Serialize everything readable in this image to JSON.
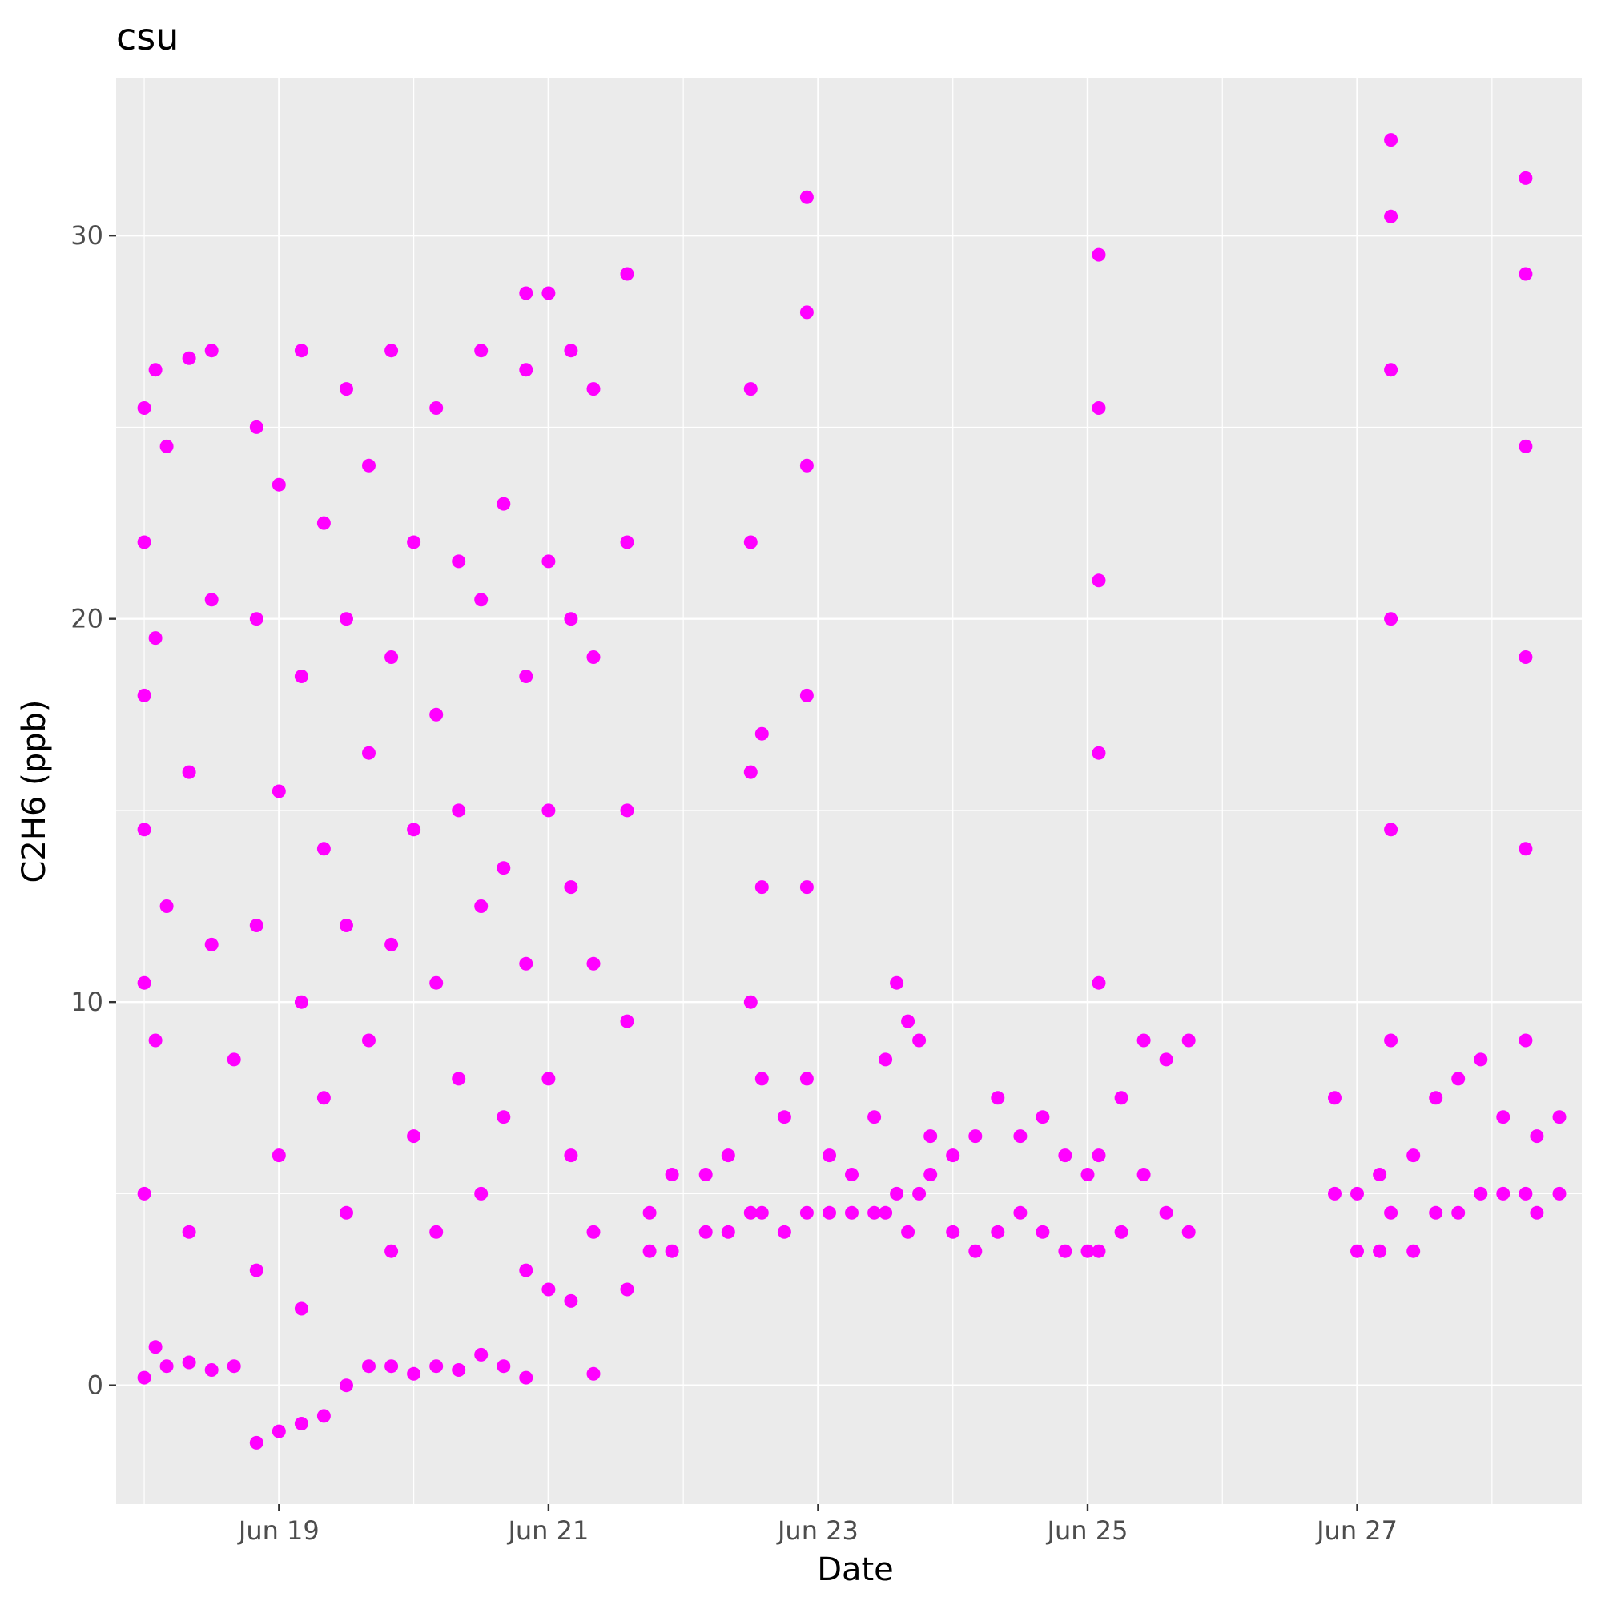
{
  "chart_data": {
    "type": "scatter",
    "title": "csu",
    "xlabel": "Date",
    "ylabel": "C2H6 (ppb)",
    "x_type": "date",
    "xlim": [
      "2023-06-17T19:00",
      "2023-06-28T16:00"
    ],
    "ylim": [
      -3.1,
      34.1
    ],
    "x_ticks": [
      {
        "value": "2023-06-19",
        "label": "Jun 19"
      },
      {
        "value": "2023-06-21",
        "label": "Jun 21"
      },
      {
        "value": "2023-06-23",
        "label": "Jun 23"
      },
      {
        "value": "2023-06-25",
        "label": "Jun 25"
      },
      {
        "value": "2023-06-27",
        "label": "Jun 27"
      }
    ],
    "y_ticks": [
      0,
      10,
      20,
      30
    ],
    "grid": true,
    "legend": "none",
    "point_color": "#ff00ff",
    "panel_color": "#ebebeb",
    "series": [
      {
        "values": [
          {
            "x": "2023-06-18T00:00",
            "y": 0.2
          },
          {
            "x": "2023-06-18T00:00",
            "y": 5.0
          },
          {
            "x": "2023-06-18T00:00",
            "y": 10.5
          },
          {
            "x": "2023-06-18T00:00",
            "y": 14.5
          },
          {
            "x": "2023-06-18T00:00",
            "y": 18.0
          },
          {
            "x": "2023-06-18T00:00",
            "y": 22.0
          },
          {
            "x": "2023-06-18T00:00",
            "y": 25.5
          },
          {
            "x": "2023-06-18T02:00",
            "y": 1.0
          },
          {
            "x": "2023-06-18T02:00",
            "y": 9.0
          },
          {
            "x": "2023-06-18T02:00",
            "y": 19.5
          },
          {
            "x": "2023-06-18T02:00",
            "y": 26.5
          },
          {
            "x": "2023-06-18T04:00",
            "y": 0.5
          },
          {
            "x": "2023-06-18T04:00",
            "y": 12.5
          },
          {
            "x": "2023-06-18T04:00",
            "y": 24.5
          },
          {
            "x": "2023-06-18T08:00",
            "y": 0.6
          },
          {
            "x": "2023-06-18T08:00",
            "y": 4.0
          },
          {
            "x": "2023-06-18T08:00",
            "y": 16.0
          },
          {
            "x": "2023-06-18T08:00",
            "y": 26.8
          },
          {
            "x": "2023-06-18T12:00",
            "y": 0.4
          },
          {
            "x": "2023-06-18T12:00",
            "y": 11.5
          },
          {
            "x": "2023-06-18T12:00",
            "y": 20.5
          },
          {
            "x": "2023-06-18T12:00",
            "y": 27.0
          },
          {
            "x": "2023-06-18T16:00",
            "y": 0.5
          },
          {
            "x": "2023-06-18T16:00",
            "y": 8.5
          },
          {
            "x": "2023-06-18T20:00",
            "y": -1.5
          },
          {
            "x": "2023-06-18T20:00",
            "y": 3.0
          },
          {
            "x": "2023-06-18T20:00",
            "y": 12.0
          },
          {
            "x": "2023-06-18T20:00",
            "y": 20.0
          },
          {
            "x": "2023-06-18T20:00",
            "y": 25.0
          },
          {
            "x": "2023-06-19T00:00",
            "y": -1.2
          },
          {
            "x": "2023-06-19T00:00",
            "y": 6.0
          },
          {
            "x": "2023-06-19T00:00",
            "y": 15.5
          },
          {
            "x": "2023-06-19T00:00",
            "y": 23.5
          },
          {
            "x": "2023-06-19T04:00",
            "y": -1.0
          },
          {
            "x": "2023-06-19T04:00",
            "y": 2.0
          },
          {
            "x": "2023-06-19T04:00",
            "y": 10.0
          },
          {
            "x": "2023-06-19T04:00",
            "y": 18.5
          },
          {
            "x": "2023-06-19T04:00",
            "y": 27.0
          },
          {
            "x": "2023-06-19T08:00",
            "y": -0.8
          },
          {
            "x": "2023-06-19T08:00",
            "y": 7.5
          },
          {
            "x": "2023-06-19T08:00",
            "y": 14.0
          },
          {
            "x": "2023-06-19T08:00",
            "y": 22.5
          },
          {
            "x": "2023-06-19T12:00",
            "y": 0.0
          },
          {
            "x": "2023-06-19T12:00",
            "y": 4.5
          },
          {
            "x": "2023-06-19T12:00",
            "y": 12.0
          },
          {
            "x": "2023-06-19T12:00",
            "y": 20.0
          },
          {
            "x": "2023-06-19T12:00",
            "y": 26.0
          },
          {
            "x": "2023-06-19T16:00",
            "y": 0.5
          },
          {
            "x": "2023-06-19T16:00",
            "y": 9.0
          },
          {
            "x": "2023-06-19T16:00",
            "y": 16.5
          },
          {
            "x": "2023-06-19T16:00",
            "y": 24.0
          },
          {
            "x": "2023-06-19T20:00",
            "y": 0.5
          },
          {
            "x": "2023-06-19T20:00",
            "y": 3.5
          },
          {
            "x": "2023-06-19T20:00",
            "y": 11.5
          },
          {
            "x": "2023-06-19T20:00",
            "y": 19.0
          },
          {
            "x": "2023-06-19T20:00",
            "y": 27.0
          },
          {
            "x": "2023-06-20T00:00",
            "y": 0.3
          },
          {
            "x": "2023-06-20T00:00",
            "y": 6.5
          },
          {
            "x": "2023-06-20T00:00",
            "y": 14.5
          },
          {
            "x": "2023-06-20T00:00",
            "y": 22.0
          },
          {
            "x": "2023-06-20T04:00",
            "y": 0.5
          },
          {
            "x": "2023-06-20T04:00",
            "y": 4.0
          },
          {
            "x": "2023-06-20T04:00",
            "y": 10.5
          },
          {
            "x": "2023-06-20T04:00",
            "y": 17.5
          },
          {
            "x": "2023-06-20T04:00",
            "y": 25.5
          },
          {
            "x": "2023-06-20T08:00",
            "y": 0.4
          },
          {
            "x": "2023-06-20T08:00",
            "y": 8.0
          },
          {
            "x": "2023-06-20T08:00",
            "y": 15.0
          },
          {
            "x": "2023-06-20T08:00",
            "y": 21.5
          },
          {
            "x": "2023-06-20T12:00",
            "y": 0.8
          },
          {
            "x": "2023-06-20T12:00",
            "y": 5.0
          },
          {
            "x": "2023-06-20T12:00",
            "y": 12.5
          },
          {
            "x": "2023-06-20T12:00",
            "y": 20.5
          },
          {
            "x": "2023-06-20T12:00",
            "y": 27.0
          },
          {
            "x": "2023-06-20T16:00",
            "y": 0.5
          },
          {
            "x": "2023-06-20T16:00",
            "y": 7.0
          },
          {
            "x": "2023-06-20T16:00",
            "y": 13.5
          },
          {
            "x": "2023-06-20T16:00",
            "y": 23.0
          },
          {
            "x": "2023-06-20T20:00",
            "y": 0.2
          },
          {
            "x": "2023-06-20T20:00",
            "y": 3.0
          },
          {
            "x": "2023-06-20T20:00",
            "y": 11.0
          },
          {
            "x": "2023-06-20T20:00",
            "y": 18.5
          },
          {
            "x": "2023-06-20T20:00",
            "y": 26.5
          },
          {
            "x": "2023-06-20T20:00",
            "y": 28.5
          },
          {
            "x": "2023-06-21T00:00",
            "y": 2.5
          },
          {
            "x": "2023-06-21T00:00",
            "y": 8.0
          },
          {
            "x": "2023-06-21T00:00",
            "y": 15.0
          },
          {
            "x": "2023-06-21T00:00",
            "y": 21.5
          },
          {
            "x": "2023-06-21T00:00",
            "y": 28.5
          },
          {
            "x": "2023-06-21T04:00",
            "y": 2.2
          },
          {
            "x": "2023-06-21T04:00",
            "y": 6.0
          },
          {
            "x": "2023-06-21T04:00",
            "y": 13.0
          },
          {
            "x": "2023-06-21T04:00",
            "y": 20.0
          },
          {
            "x": "2023-06-21T04:00",
            "y": 27.0
          },
          {
            "x": "2023-06-21T08:00",
            "y": 0.3
          },
          {
            "x": "2023-06-21T08:00",
            "y": 4.0
          },
          {
            "x": "2023-06-21T08:00",
            "y": 11.0
          },
          {
            "x": "2023-06-21T08:00",
            "y": 19.0
          },
          {
            "x": "2023-06-21T08:00",
            "y": 26.0
          },
          {
            "x": "2023-06-21T14:00",
            "y": 2.5
          },
          {
            "x": "2023-06-21T14:00",
            "y": 9.5
          },
          {
            "x": "2023-06-21T14:00",
            "y": 15.0
          },
          {
            "x": "2023-06-21T14:00",
            "y": 22.0
          },
          {
            "x": "2023-06-21T14:00",
            "y": 29.0
          },
          {
            "x": "2023-06-21T18:00",
            "y": 3.5
          },
          {
            "x": "2023-06-21T18:00",
            "y": 4.5
          },
          {
            "x": "2023-06-21T22:00",
            "y": 3.5
          },
          {
            "x": "2023-06-21T22:00",
            "y": 5.5
          },
          {
            "x": "2023-06-22T04:00",
            "y": 4.0
          },
          {
            "x": "2023-06-22T04:00",
            "y": 5.5
          },
          {
            "x": "2023-06-22T08:00",
            "y": 4.0
          },
          {
            "x": "2023-06-22T08:00",
            "y": 6.0
          },
          {
            "x": "2023-06-22T12:00",
            "y": 4.5
          },
          {
            "x": "2023-06-22T12:00",
            "y": 10.0
          },
          {
            "x": "2023-06-22T12:00",
            "y": 16.0
          },
          {
            "x": "2023-06-22T12:00",
            "y": 22.0
          },
          {
            "x": "2023-06-22T12:00",
            "y": 26.0
          },
          {
            "x": "2023-06-22T14:00",
            "y": 4.5
          },
          {
            "x": "2023-06-22T14:00",
            "y": 8.0
          },
          {
            "x": "2023-06-22T14:00",
            "y": 13.0
          },
          {
            "x": "2023-06-22T14:00",
            "y": 17.0
          },
          {
            "x": "2023-06-22T18:00",
            "y": 4.0
          },
          {
            "x": "2023-06-22T18:00",
            "y": 7.0
          },
          {
            "x": "2023-06-22T22:00",
            "y": 4.5
          },
          {
            "x": "2023-06-22T22:00",
            "y": 8.0
          },
          {
            "x": "2023-06-22T22:00",
            "y": 13.0
          },
          {
            "x": "2023-06-22T22:00",
            "y": 18.0
          },
          {
            "x": "2023-06-22T22:00",
            "y": 24.0
          },
          {
            "x": "2023-06-22T22:00",
            "y": 28.0
          },
          {
            "x": "2023-06-22T22:00",
            "y": 31.0
          },
          {
            "x": "2023-06-23T02:00",
            "y": 4.5
          },
          {
            "x": "2023-06-23T02:00",
            "y": 6.0
          },
          {
            "x": "2023-06-23T06:00",
            "y": 4.5
          },
          {
            "x": "2023-06-23T06:00",
            "y": 5.5
          },
          {
            "x": "2023-06-23T10:00",
            "y": 4.5
          },
          {
            "x": "2023-06-23T10:00",
            "y": 7.0
          },
          {
            "x": "2023-06-23T12:00",
            "y": 4.5
          },
          {
            "x": "2023-06-23T12:00",
            "y": 8.5
          },
          {
            "x": "2023-06-23T14:00",
            "y": 5.0
          },
          {
            "x": "2023-06-23T14:00",
            "y": 10.5
          },
          {
            "x": "2023-06-23T16:00",
            "y": 4.0
          },
          {
            "x": "2023-06-23T16:00",
            "y": 9.5
          },
          {
            "x": "2023-06-23T18:00",
            "y": 5.0
          },
          {
            "x": "2023-06-23T18:00",
            "y": 9.0
          },
          {
            "x": "2023-06-23T20:00",
            "y": 5.5
          },
          {
            "x": "2023-06-23T20:00",
            "y": 6.5
          },
          {
            "x": "2023-06-24T00:00",
            "y": 4.0
          },
          {
            "x": "2023-06-24T00:00",
            "y": 6.0
          },
          {
            "x": "2023-06-24T04:00",
            "y": 3.5
          },
          {
            "x": "2023-06-24T04:00",
            "y": 6.5
          },
          {
            "x": "2023-06-24T08:00",
            "y": 4.0
          },
          {
            "x": "2023-06-24T08:00",
            "y": 7.5
          },
          {
            "x": "2023-06-24T12:00",
            "y": 4.5
          },
          {
            "x": "2023-06-24T12:00",
            "y": 6.5
          },
          {
            "x": "2023-06-24T16:00",
            "y": 4.0
          },
          {
            "x": "2023-06-24T16:00",
            "y": 7.0
          },
          {
            "x": "2023-06-24T20:00",
            "y": 3.5
          },
          {
            "x": "2023-06-24T20:00",
            "y": 6.0
          },
          {
            "x": "2023-06-25T00:00",
            "y": 3.5
          },
          {
            "x": "2023-06-25T00:00",
            "y": 5.5
          },
          {
            "x": "2023-06-25T02:00",
            "y": 3.5
          },
          {
            "x": "2023-06-25T02:00",
            "y": 6.0
          },
          {
            "x": "2023-06-25T02:00",
            "y": 10.5
          },
          {
            "x": "2023-06-25T02:00",
            "y": 16.5
          },
          {
            "x": "2023-06-25T02:00",
            "y": 21.0
          },
          {
            "x": "2023-06-25T02:00",
            "y": 25.5
          },
          {
            "x": "2023-06-25T02:00",
            "y": 29.5
          },
          {
            "x": "2023-06-25T06:00",
            "y": 4.0
          },
          {
            "x": "2023-06-25T06:00",
            "y": 7.5
          },
          {
            "x": "2023-06-25T10:00",
            "y": 5.5
          },
          {
            "x": "2023-06-25T10:00",
            "y": 9.0
          },
          {
            "x": "2023-06-25T14:00",
            "y": 4.5
          },
          {
            "x": "2023-06-25T14:00",
            "y": 8.5
          },
          {
            "x": "2023-06-25T18:00",
            "y": 4.0
          },
          {
            "x": "2023-06-25T18:00",
            "y": 9.0
          },
          {
            "x": "2023-06-26T20:00",
            "y": 5.0
          },
          {
            "x": "2023-06-26T20:00",
            "y": 7.5
          },
          {
            "x": "2023-06-27T00:00",
            "y": 3.5
          },
          {
            "x": "2023-06-27T00:00",
            "y": 5.0
          },
          {
            "x": "2023-06-27T04:00",
            "y": 3.5
          },
          {
            "x": "2023-06-27T04:00",
            "y": 5.5
          },
          {
            "x": "2023-06-27T06:00",
            "y": 4.5
          },
          {
            "x": "2023-06-27T06:00",
            "y": 9.0
          },
          {
            "x": "2023-06-27T06:00",
            "y": 14.5
          },
          {
            "x": "2023-06-27T06:00",
            "y": 20.0
          },
          {
            "x": "2023-06-27T06:00",
            "y": 26.5
          },
          {
            "x": "2023-06-27T06:00",
            "y": 30.5
          },
          {
            "x": "2023-06-27T06:00",
            "y": 32.5
          },
          {
            "x": "2023-06-27T10:00",
            "y": 3.5
          },
          {
            "x": "2023-06-27T10:00",
            "y": 6.0
          },
          {
            "x": "2023-06-27T14:00",
            "y": 4.5
          },
          {
            "x": "2023-06-27T14:00",
            "y": 7.5
          },
          {
            "x": "2023-06-27T18:00",
            "y": 4.5
          },
          {
            "x": "2023-06-27T18:00",
            "y": 8.0
          },
          {
            "x": "2023-06-27T22:00",
            "y": 5.0
          },
          {
            "x": "2023-06-27T22:00",
            "y": 8.5
          },
          {
            "x": "2023-06-28T02:00",
            "y": 5.0
          },
          {
            "x": "2023-06-28T02:00",
            "y": 7.0
          },
          {
            "x": "2023-06-28T06:00",
            "y": 5.0
          },
          {
            "x": "2023-06-28T06:00",
            "y": 9.0
          },
          {
            "x": "2023-06-28T06:00",
            "y": 14.0
          },
          {
            "x": "2023-06-28T06:00",
            "y": 19.0
          },
          {
            "x": "2023-06-28T06:00",
            "y": 24.5
          },
          {
            "x": "2023-06-28T06:00",
            "y": 29.0
          },
          {
            "x": "2023-06-28T06:00",
            "y": 31.5
          },
          {
            "x": "2023-06-28T08:00",
            "y": 4.5
          },
          {
            "x": "2023-06-28T08:00",
            "y": 6.5
          },
          {
            "x": "2023-06-28T12:00",
            "y": 5.0
          },
          {
            "x": "2023-06-28T12:00",
            "y": 7.0
          }
        ]
      }
    ]
  }
}
